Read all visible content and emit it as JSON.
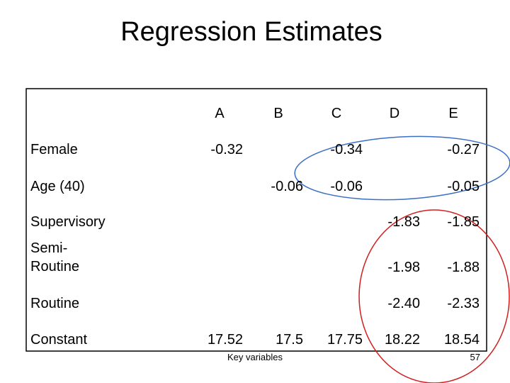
{
  "header": {
    "title": "Regression Estimates"
  },
  "table": {
    "columns": [
      "A",
      "B",
      "C",
      "D",
      "E"
    ],
    "rows": [
      {
        "label": "Female",
        "cells": [
          "-0.32",
          null,
          "-0.34",
          null,
          "-0.27"
        ]
      },
      {
        "label": "Age (40)",
        "cells": [
          null,
          "-0.06",
          "-0.06",
          null,
          "-0.05"
        ]
      },
      {
        "label": "Supervisory",
        "cells": [
          null,
          null,
          null,
          "-1.83",
          "-1.85"
        ]
      },
      {
        "label": "Semi-\nRoutine",
        "cells": [
          null,
          null,
          null,
          "-1.98",
          "-1.88"
        ]
      },
      {
        "label": "Routine",
        "cells": [
          null,
          null,
          null,
          "-2.40",
          "-2.33"
        ]
      },
      {
        "label": "Constant",
        "cells": [
          "17.52",
          "17.5",
          "17.75",
          "18.22",
          "18.54"
        ]
      }
    ]
  },
  "footer": {
    "note": "Key variables",
    "page": "57"
  }
}
